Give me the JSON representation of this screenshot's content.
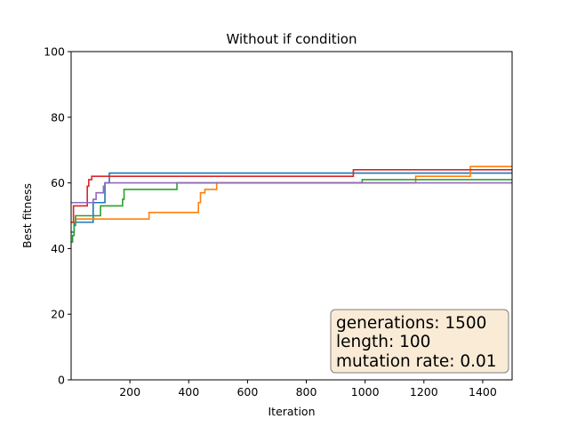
{
  "chart_data": {
    "type": "line",
    "title": "Without if condition",
    "xlabel": "Iteration",
    "ylabel": "Best fitness",
    "xlim": [
      0,
      1500
    ],
    "ylim": [
      0,
      100
    ],
    "xticks": [
      200,
      400,
      600,
      800,
      1000,
      1200,
      1400
    ],
    "yticks": [
      0,
      20,
      40,
      60,
      80,
      100
    ],
    "grid": false,
    "series": [
      {
        "color": "#1f77b4",
        "step_points": [
          [
            0,
            45
          ],
          [
            10,
            48
          ],
          [
            50,
            48
          ],
          [
            75,
            54
          ],
          [
            95,
            54
          ],
          [
            115,
            60
          ],
          [
            130,
            63
          ],
          [
            1500,
            63
          ]
        ]
      },
      {
        "color": "#ff7f0e",
        "step_points": [
          [
            0,
            48
          ],
          [
            15,
            49
          ],
          [
            260,
            49
          ],
          [
            265,
            51
          ],
          [
            430,
            51
          ],
          [
            433,
            54
          ],
          [
            440,
            57
          ],
          [
            455,
            58
          ],
          [
            490,
            58
          ],
          [
            495,
            60
          ],
          [
            1170,
            60
          ],
          [
            1172,
            62
          ],
          [
            1355,
            62
          ],
          [
            1358,
            65
          ],
          [
            1500,
            65
          ]
        ]
      },
      {
        "color": "#2ca02c",
        "step_points": [
          [
            0,
            42
          ],
          [
            5,
            44
          ],
          [
            10,
            47
          ],
          [
            15,
            50
          ],
          [
            90,
            50
          ],
          [
            100,
            53
          ],
          [
            170,
            53
          ],
          [
            175,
            55
          ],
          [
            180,
            58
          ],
          [
            355,
            58
          ],
          [
            360,
            60
          ],
          [
            985,
            60
          ],
          [
            990,
            61
          ],
          [
            1500,
            61
          ]
        ]
      },
      {
        "color": "#d62728",
        "step_points": [
          [
            0,
            48
          ],
          [
            8,
            53
          ],
          [
            45,
            53
          ],
          [
            55,
            59
          ],
          [
            60,
            61
          ],
          [
            70,
            62
          ],
          [
            955,
            62
          ],
          [
            960,
            64
          ],
          [
            1500,
            64
          ]
        ]
      },
      {
        "color": "#9467bd",
        "step_points": [
          [
            0,
            54
          ],
          [
            75,
            55
          ],
          [
            85,
            57
          ],
          [
            110,
            59
          ],
          [
            115,
            60
          ],
          [
            1500,
            60
          ]
        ]
      }
    ],
    "annotations": [
      {
        "lines": [
          "generations: 1500",
          "length: 100",
          "mutation rate: 0.01"
        ],
        "placement": "bottom-right",
        "facecolor": "#f9ebd6"
      }
    ]
  }
}
